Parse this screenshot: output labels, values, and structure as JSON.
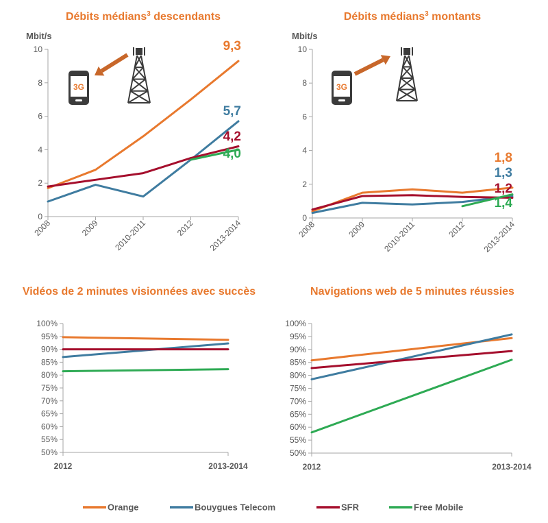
{
  "colors": {
    "orange": "#e8792e",
    "bouygues": "#3f7ca0",
    "sfr": "#a50f2d",
    "free": "#2eaa54",
    "axis": "#a6a6a6",
    "text": "#595959"
  },
  "legend": [
    {
      "name": "Orange",
      "color": "#e8792e"
    },
    {
      "name": "Bouygues Telecom",
      "color": "#3f7ca0"
    },
    {
      "name": "SFR",
      "color": "#a50f2d"
    },
    {
      "name": "Free Mobile",
      "color": "#2eaa54"
    }
  ],
  "icons": {
    "phone_label": "3G"
  },
  "chart_data": [
    {
      "type": "line",
      "title_main": "Débits médians",
      "title_sup": "3",
      "title_end": " descendants",
      "unit": "Mbit/s",
      "x": [
        "2008",
        "2009",
        "2010-2011",
        "2012",
        "2013-2014"
      ],
      "ylim": [
        0,
        10
      ],
      "yticks": [
        0,
        2,
        4,
        6,
        8,
        10
      ],
      "ytick_labels": [
        "0",
        "2",
        "4",
        "6",
        "8",
        "10"
      ],
      "series": [
        {
          "name": "Orange",
          "color": "#e8792e",
          "values": [
            1.7,
            2.8,
            4.8,
            7.0,
            9.3
          ],
          "end_label": "9,3"
        },
        {
          "name": "Bouygues Telecom",
          "color": "#3f7ca0",
          "values": [
            0.9,
            1.9,
            1.2,
            3.4,
            5.7
          ],
          "end_label": "5,7"
        },
        {
          "name": "SFR",
          "color": "#a50f2d",
          "values": [
            1.8,
            2.2,
            2.6,
            3.5,
            4.2
          ],
          "end_label": "4,2"
        },
        {
          "name": "Free Mobile",
          "color": "#2eaa54",
          "values": [
            null,
            null,
            null,
            3.4,
            4.0
          ],
          "end_label": "4,0"
        }
      ]
    },
    {
      "type": "line",
      "title_main": "Débits médians",
      "title_sup": "3",
      "title_end": " montants",
      "unit": "Mbit/s",
      "x": [
        "2008",
        "2009",
        "2010-2011",
        "2012",
        "2013-2014"
      ],
      "ylim": [
        0,
        10
      ],
      "yticks": [
        0,
        2,
        4,
        6,
        8,
        10
      ],
      "ytick_labels": [
        "0",
        "2",
        "4",
        "6",
        "8",
        "10"
      ],
      "series": [
        {
          "name": "Orange",
          "color": "#e8792e",
          "values": [
            0.4,
            1.5,
            1.7,
            1.5,
            1.8
          ],
          "end_label": "1,8"
        },
        {
          "name": "Bouygues Telecom",
          "color": "#3f7ca0",
          "values": [
            0.3,
            0.9,
            0.8,
            0.95,
            1.3
          ],
          "end_label": "1,3"
        },
        {
          "name": "SFR",
          "color": "#a50f2d",
          "values": [
            0.5,
            1.3,
            1.35,
            1.25,
            1.2
          ],
          "end_label": "1,2"
        },
        {
          "name": "Free Mobile",
          "color": "#2eaa54",
          "values": [
            null,
            null,
            null,
            0.7,
            1.4
          ],
          "end_label": "1,4"
        }
      ]
    },
    {
      "type": "line",
      "title_main": "Vidéos de 2 minutes visionnées avec succès",
      "x": [
        "2012",
        "2013-2014"
      ],
      "ylim": [
        50,
        100
      ],
      "yticks": [
        50,
        55,
        60,
        65,
        70,
        75,
        80,
        85,
        90,
        95,
        100
      ],
      "ytick_labels": [
        "50%",
        "55%",
        "60%",
        "65%",
        "70%",
        "75%",
        "80%",
        "85%",
        "90%",
        "95%",
        "100%"
      ],
      "series": [
        {
          "name": "Orange",
          "color": "#e8792e",
          "values": [
            94.7,
            93.7
          ]
        },
        {
          "name": "Bouygues Telecom",
          "color": "#3f7ca0",
          "values": [
            87.0,
            92.3
          ]
        },
        {
          "name": "SFR",
          "color": "#a50f2d",
          "values": [
            90.0,
            90.0
          ]
        },
        {
          "name": "Free Mobile",
          "color": "#2eaa54",
          "values": [
            81.5,
            82.3
          ]
        }
      ]
    },
    {
      "type": "line",
      "title_main": "Navigations web de 5 minutes réussies",
      "x": [
        "2012",
        "2013-2014"
      ],
      "ylim": [
        50,
        100
      ],
      "yticks": [
        50,
        55,
        60,
        65,
        70,
        75,
        80,
        85,
        90,
        95,
        100
      ],
      "ytick_labels": [
        "50%",
        "55%",
        "60%",
        "65%",
        "70%",
        "75%",
        "80%",
        "85%",
        "90%",
        "95%",
        "100%"
      ],
      "series": [
        {
          "name": "Orange",
          "color": "#e8792e",
          "values": [
            85.8,
            94.4
          ]
        },
        {
          "name": "Bouygues Telecom",
          "color": "#3f7ca0",
          "values": [
            78.5,
            95.8
          ]
        },
        {
          "name": "SFR",
          "color": "#a50f2d",
          "values": [
            82.8,
            89.4
          ]
        },
        {
          "name": "Free Mobile",
          "color": "#2eaa54",
          "values": [
            58.0,
            86.0
          ]
        }
      ]
    }
  ]
}
